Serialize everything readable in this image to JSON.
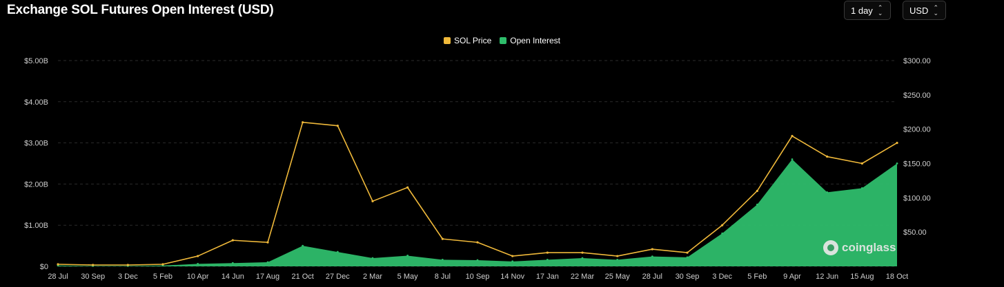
{
  "header": {
    "title": "Exchange SOL Futures Open Interest (USD)"
  },
  "controls": {
    "interval": {
      "value": "1 day"
    },
    "currency": {
      "value": "USD"
    }
  },
  "watermark": {
    "text": "coinglass"
  },
  "colors": {
    "price": "#f0b93a",
    "oi": "#2ebd6b",
    "background": "#000000",
    "grid": "#2b2b2b"
  },
  "chart_data": {
    "type": "area",
    "title": "Exchange SOL Futures Open Interest (USD)",
    "legend": {
      "position": "top-center",
      "entries": [
        "SOL Price",
        "Open Interest"
      ]
    },
    "grid": true,
    "x_tick_labels": [
      "28 Jul",
      "30 Sep",
      "3 Dec",
      "5 Feb",
      "10 Apr",
      "14 Jun",
      "17 Aug",
      "21 Oct",
      "27 Dec",
      "2 Mar",
      "5 May",
      "8 Jul",
      "10 Sep",
      "14 Nov",
      "17 Jan",
      "22 Mar",
      "25 May",
      "28 Jul",
      "30 Sep",
      "3 Dec",
      "5 Feb",
      "9 Apr",
      "12 Jun",
      "15 Aug",
      "18 Oct"
    ],
    "y_left": {
      "label": "",
      "ticks": [
        "$0",
        "$1.00B",
        "$2.00B",
        "$3.00B",
        "$4.00B",
        "$5.00B"
      ],
      "range": [
        0,
        5.0
      ],
      "unit": "B USD"
    },
    "y_right": {
      "label": "",
      "ticks": [
        "$50.00",
        "$100.00",
        "$150.00",
        "$200.00",
        "$250.00",
        "$300.00"
      ],
      "range": [
        0,
        300
      ]
    },
    "x": [
      0,
      1,
      2,
      3,
      4,
      5,
      6,
      7,
      8,
      9,
      10,
      11,
      12,
      13,
      14,
      15,
      16,
      17,
      18,
      19,
      20,
      21,
      22,
      23,
      24
    ],
    "series": [
      {
        "name": "SOL Price",
        "axis": "right",
        "values": [
          3,
          2,
          2,
          3,
          15,
          38,
          35,
          210,
          205,
          95,
          115,
          40,
          35,
          15,
          20,
          20,
          15,
          25,
          20,
          60,
          110,
          190,
          160,
          150,
          180
        ]
      },
      {
        "name": "Open Interest",
        "axis": "left",
        "values": [
          0.02,
          0.01,
          0.01,
          0.02,
          0.06,
          0.08,
          0.1,
          0.5,
          0.35,
          0.2,
          0.26,
          0.16,
          0.15,
          0.12,
          0.16,
          0.2,
          0.16,
          0.24,
          0.22,
          0.8,
          1.5,
          2.6,
          1.8,
          1.9,
          2.5
        ]
      }
    ]
  }
}
